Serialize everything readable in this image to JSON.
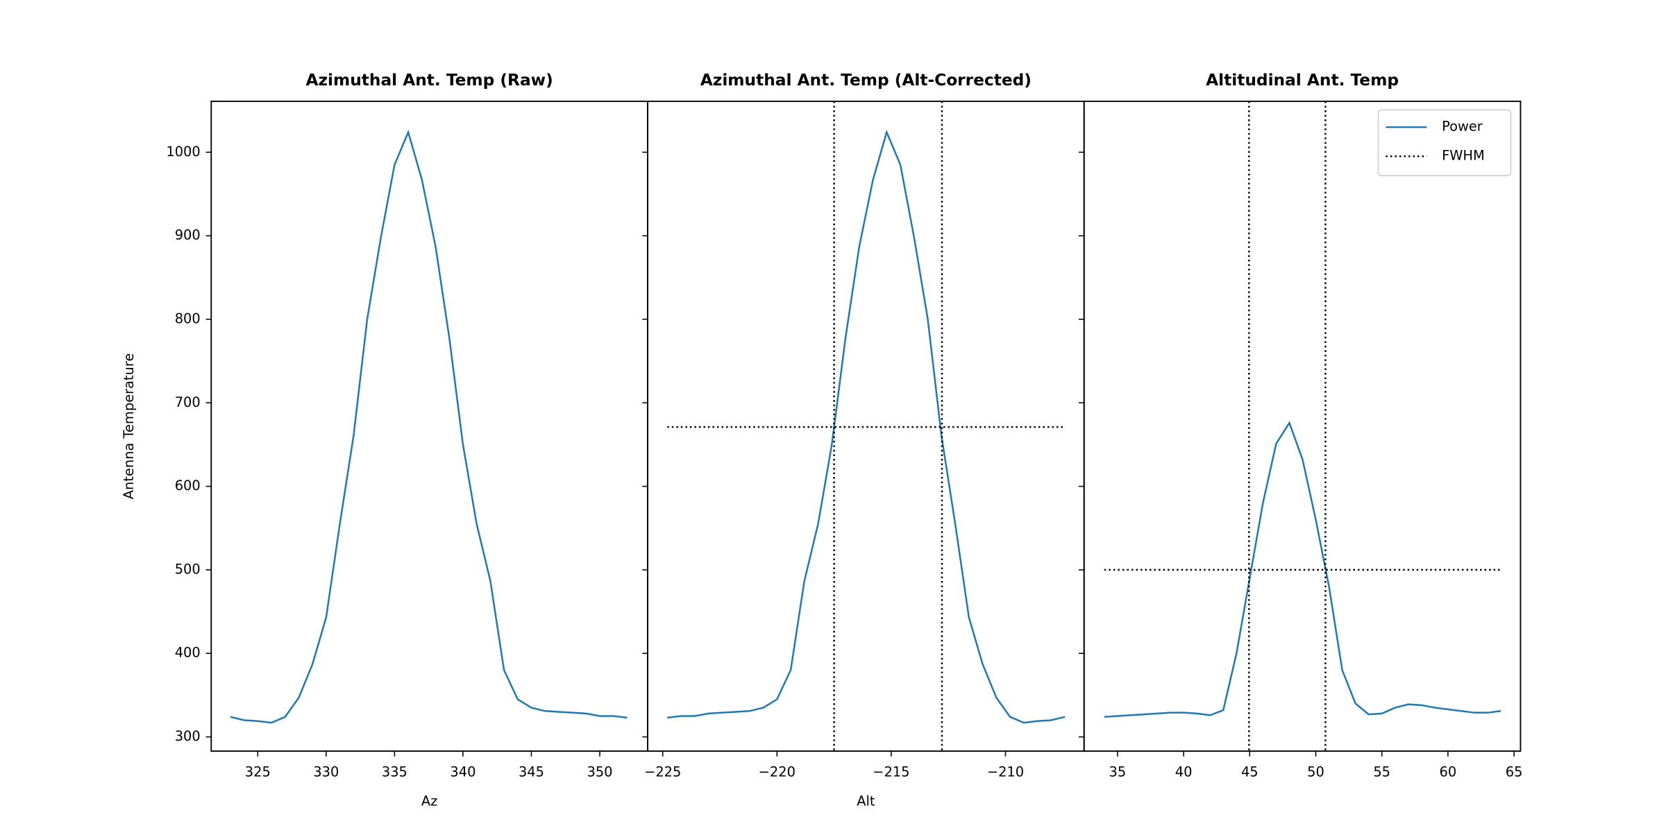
{
  "chart_data": [
    {
      "type": "line",
      "title": "Azimuthal Ant. Temp (Raw)",
      "xlabel": "Az",
      "ylabel": "Antenna Temperature",
      "xlim": [
        321.6,
        353.5
      ],
      "xticks": [
        325,
        330,
        335,
        340,
        345,
        350
      ],
      "ylim": [
        283,
        1061
      ],
      "yticks": [
        300,
        400,
        500,
        600,
        700,
        800,
        900,
        1000
      ],
      "series": [
        {
          "name": "Power",
          "color": "#1f77b4",
          "x": [
            323,
            324,
            325,
            326,
            327,
            328,
            329,
            330,
            331,
            332,
            333,
            334,
            335,
            336,
            337,
            338,
            339,
            340,
            341,
            342,
            343,
            344,
            345,
            346,
            347,
            348,
            349,
            350,
            351,
            352
          ],
          "values": [
            324,
            320,
            319,
            317,
            324,
            347,
            387,
            443,
            555,
            660,
            800,
            898,
            985,
            1024,
            967,
            887,
            778,
            650,
            555,
            487,
            380,
            345,
            335,
            331,
            330,
            329,
            328,
            325,
            325,
            323
          ]
        }
      ]
    },
    {
      "type": "line",
      "title": "Azimuthal Ant. Temp (Alt-Corrected)",
      "xlabel": "Alt",
      "xlim": [
        -225.66,
        -206.56
      ],
      "xticks": [
        {
          "value": -225,
          "label": "−225"
        },
        {
          "value": -220,
          "label": "−220"
        },
        {
          "value": -215,
          "label": "−215"
        },
        {
          "value": -210,
          "label": "−210"
        }
      ],
      "ylim": [
        283,
        1061
      ],
      "yticks": [
        300,
        400,
        500,
        600,
        700,
        800,
        900,
        1000
      ],
      "series": [
        {
          "name": "Power",
          "color": "#1f77b4",
          "x": [
            -224.8,
            -224.2,
            -223.6,
            -223.0,
            -222.4,
            -221.8,
            -221.2,
            -220.6,
            -220.0,
            -219.4,
            -218.8,
            -218.2,
            -217.6,
            -217.0,
            -216.4,
            -215.8,
            -215.2,
            -214.6,
            -214.0,
            -213.4,
            -212.8,
            -212.2,
            -211.6,
            -211.0,
            -210.4,
            -209.8,
            -209.2,
            -208.6,
            -208.0,
            -207.4
          ],
          "values": [
            323,
            325,
            325,
            328,
            329,
            330,
            331,
            335,
            345,
            380,
            487,
            555,
            650,
            778,
            887,
            967,
            1024,
            985,
            898,
            800,
            660,
            555,
            443,
            387,
            347,
            324,
            317,
            319,
            320,
            324
          ]
        }
      ],
      "fwhm": {
        "x": [
          -217.5,
          -212.78
        ],
        "y": 671
      }
    },
    {
      "type": "line",
      "title": "Altitudinal Ant. Temp",
      "xlim": [
        32.47,
        65.49
      ],
      "xticks": [
        35,
        40,
        45,
        50,
        55,
        60,
        65
      ],
      "ylim": [
        283,
        1061
      ],
      "yticks": [
        300,
        400,
        500,
        600,
        700,
        800,
        900,
        1000
      ],
      "legend": "upper right",
      "series": [
        {
          "name": "Power",
          "color": "#1f77b4",
          "x": [
            34,
            35,
            36,
            37,
            38,
            39,
            40,
            41,
            42,
            43,
            44,
            45,
            46,
            47,
            48,
            49,
            50,
            51,
            52,
            53,
            54,
            55,
            56,
            57,
            58,
            59,
            60,
            61,
            62,
            63,
            64
          ],
          "values": [
            324,
            325,
            326,
            327,
            328,
            329,
            329,
            328,
            326,
            332,
            400,
            490,
            580,
            651,
            676,
            632,
            560,
            480,
            380,
            340,
            327,
            328,
            335,
            339,
            338,
            335,
            333,
            331,
            329,
            329,
            331
          ]
        }
      ],
      "fwhm": {
        "name": "FWHM",
        "x": [
          44.95,
          50.73
        ],
        "y": 500
      }
    }
  ]
}
